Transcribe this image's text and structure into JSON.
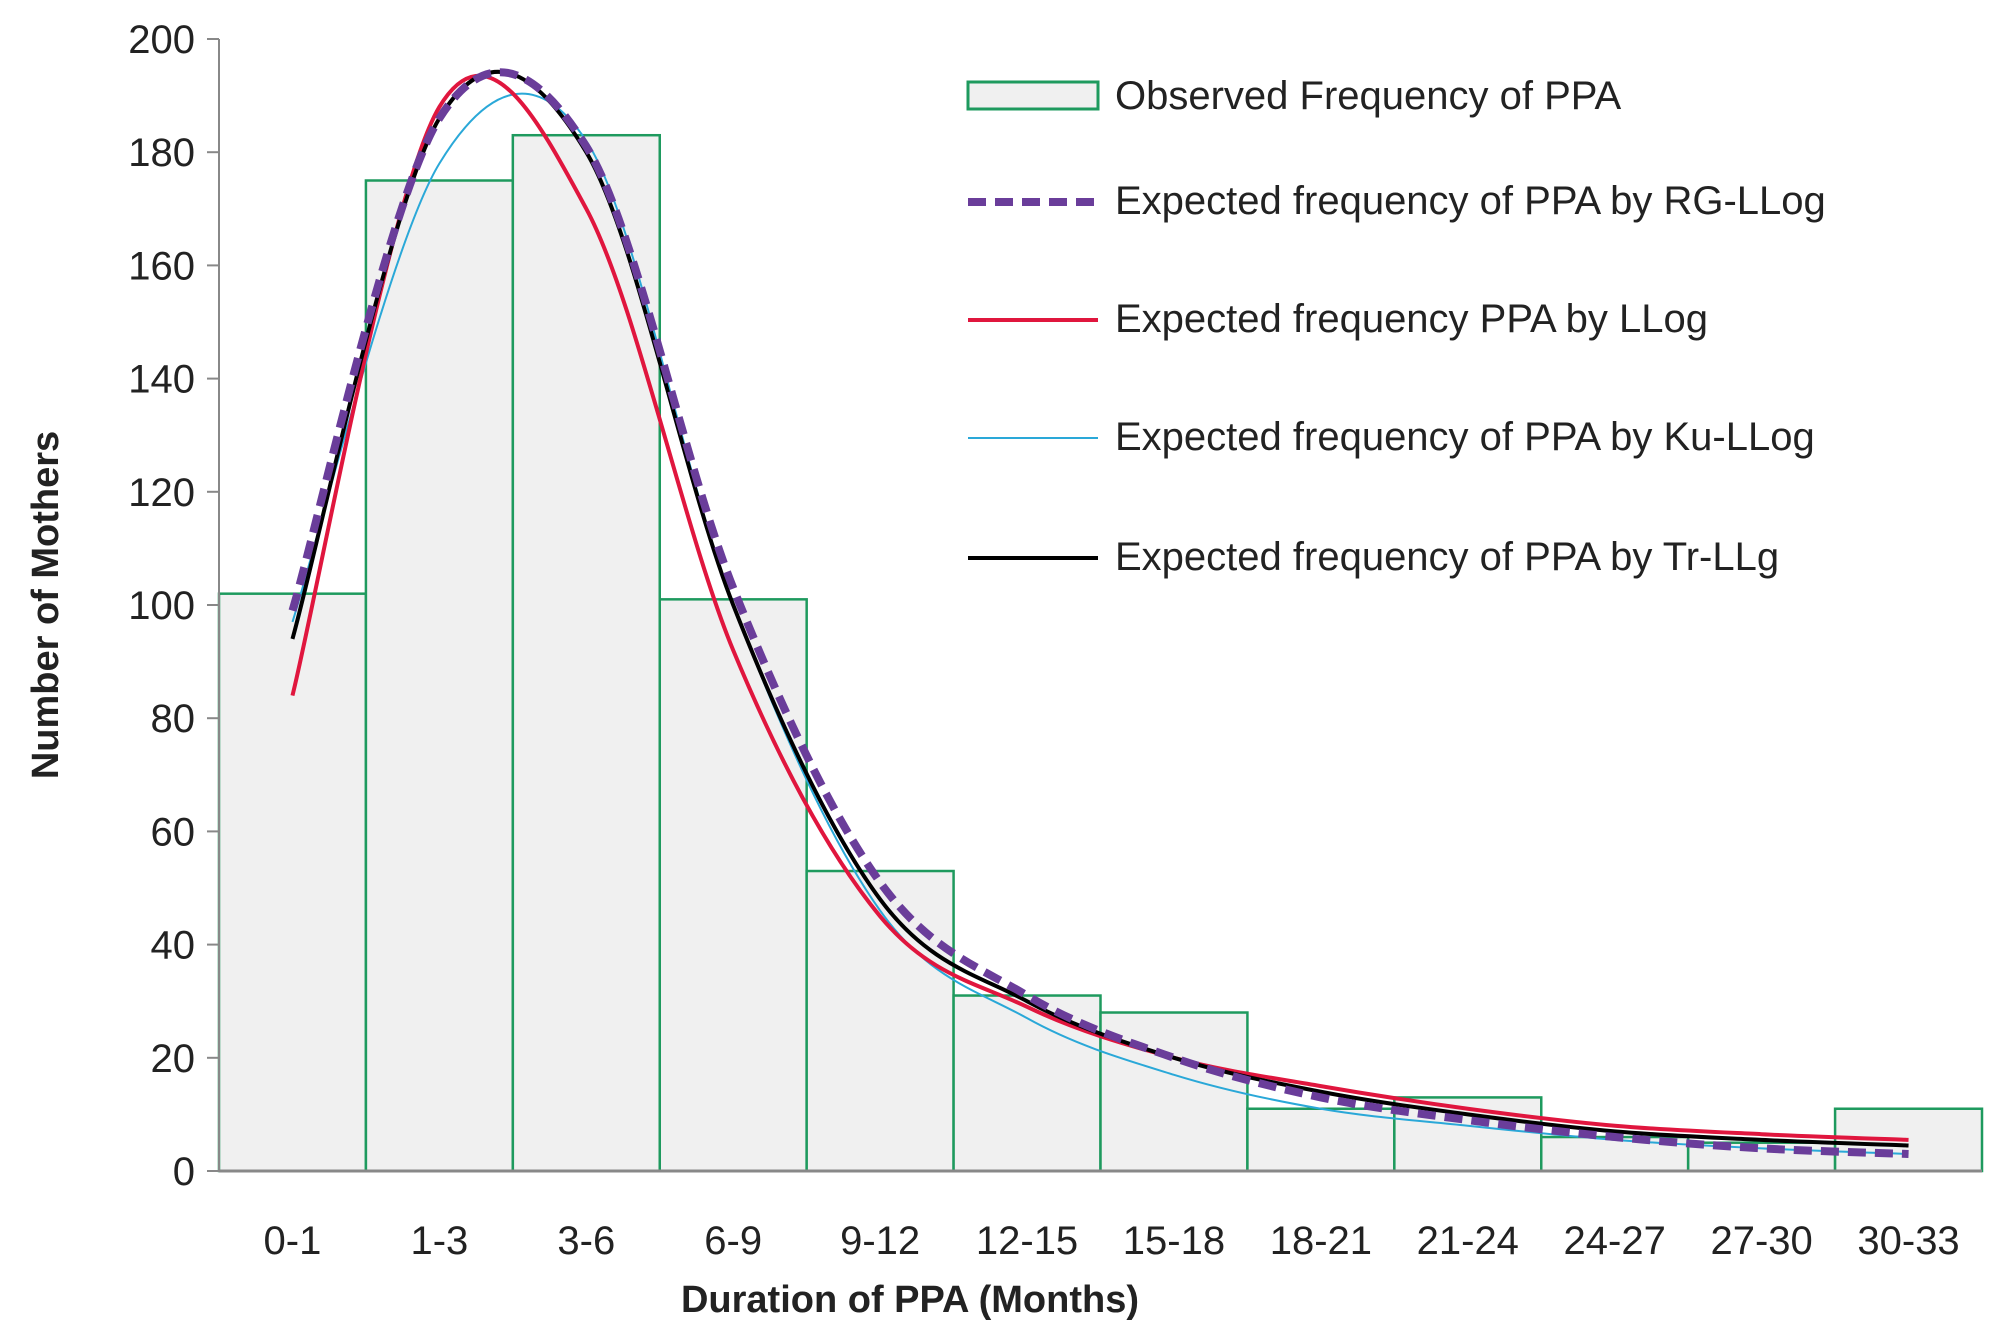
{
  "chart_data": {
    "type": "bar+line",
    "title": "",
    "xlabel": "Duration of PPA (Months)",
    "ylabel": "Number of Mothers",
    "ylim": [
      0,
      200
    ],
    "yticks": [
      0,
      20,
      40,
      60,
      80,
      100,
      120,
      140,
      160,
      180,
      200
    ],
    "grid": false,
    "legend_position": "top-right",
    "categories": [
      "0-1",
      "1-3",
      "3-6",
      "6-9",
      "9-12",
      "12-15",
      "15-18",
      "18-21",
      "21-24",
      "24-27",
      "27-30",
      "30-33"
    ],
    "bars": {
      "name": "Observed Frequency of PPA",
      "values": [
        102,
        175,
        183,
        101,
        53,
        31,
        28,
        11,
        13,
        6,
        5,
        11
      ],
      "fill": "#f0f0f0",
      "stroke": "#1e9a5e"
    },
    "series": [
      {
        "name": "Expected frequency of PPA by RG-LLog",
        "color": "#6a3d9a",
        "style": "dashed",
        "values": [
          99,
          186,
          181,
          103,
          51,
          31,
          20,
          13,
          9,
          6,
          4,
          3
        ]
      },
      {
        "name": "Expected frequency PPA by LLog",
        "color": "#e0163e",
        "style": "solid",
        "values": [
          84,
          188,
          170,
          92,
          45,
          29,
          20,
          15,
          11,
          8,
          6.5,
          5.5
        ]
      },
      {
        "name": "Expected frequency of PPA by Ku-LLog",
        "color": "#2aa8d8",
        "style": "thin",
        "values": [
          97,
          178,
          182,
          100,
          46,
          27,
          17,
          11,
          8,
          5.5,
          4,
          3
        ]
      },
      {
        "name": "Expected frequency of PPA by Tr-LLg",
        "color": "#000000",
        "style": "solid",
        "values": [
          94,
          186,
          180,
          100,
          48,
          30,
          20,
          14,
          10,
          7,
          5.5,
          4.5
        ]
      }
    ]
  }
}
